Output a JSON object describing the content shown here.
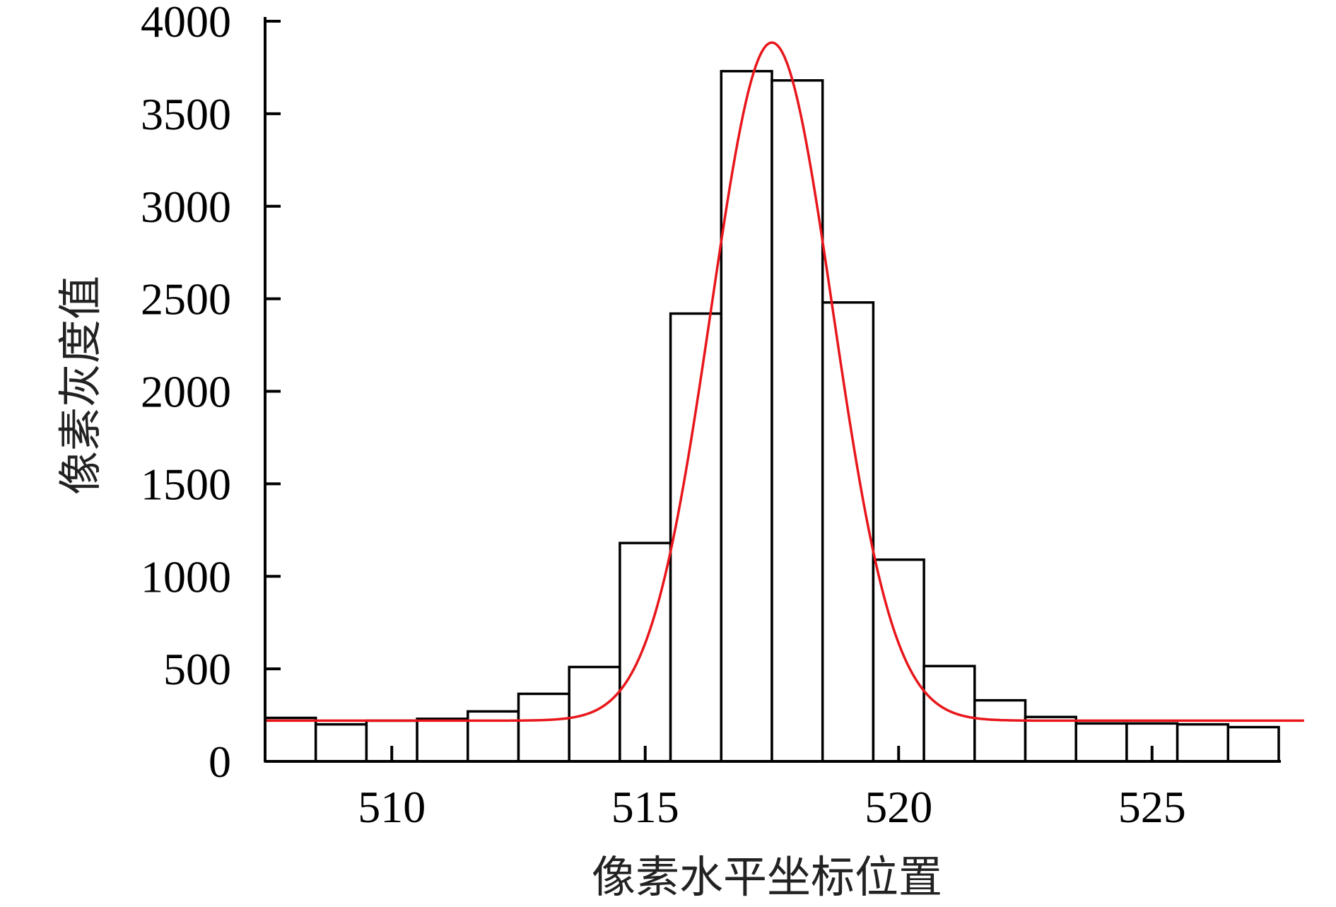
{
  "chart_data": {
    "type": "bar",
    "xlabel": "像素水平坐标位置",
    "ylabel": "像素灰度值",
    "xlim": [
      507.5,
      527.5
    ],
    "ylim": [
      0,
      4000
    ],
    "x_ticks": [
      510,
      515,
      520,
      525
    ],
    "y_ticks": [
      0,
      500,
      1000,
      1500,
      2000,
      2500,
      3000,
      3500,
      4000
    ],
    "grid": false,
    "bar_color": "#ffffff",
    "bar_edge_color": "#000000",
    "fit_color": "#e8161b",
    "series": [
      {
        "kind": "histogram",
        "x": [
          508,
          509,
          510,
          511,
          512,
          513,
          514,
          515,
          516,
          517,
          518,
          519,
          520,
          521,
          522,
          523,
          524,
          525,
          526,
          527
        ],
        "values": [
          235,
          200,
          220,
          230,
          270,
          365,
          510,
          1180,
          2420,
          3730,
          3680,
          2480,
          1090,
          515,
          330,
          240,
          205,
          205,
          200,
          185
        ]
      },
      {
        "kind": "gaussian_fit",
        "baseline": 220,
        "amplitude": 3665,
        "center": 517.5,
        "sigma": 1.2,
        "x_range": [
          507.5,
          528.0
        ]
      }
    ]
  }
}
